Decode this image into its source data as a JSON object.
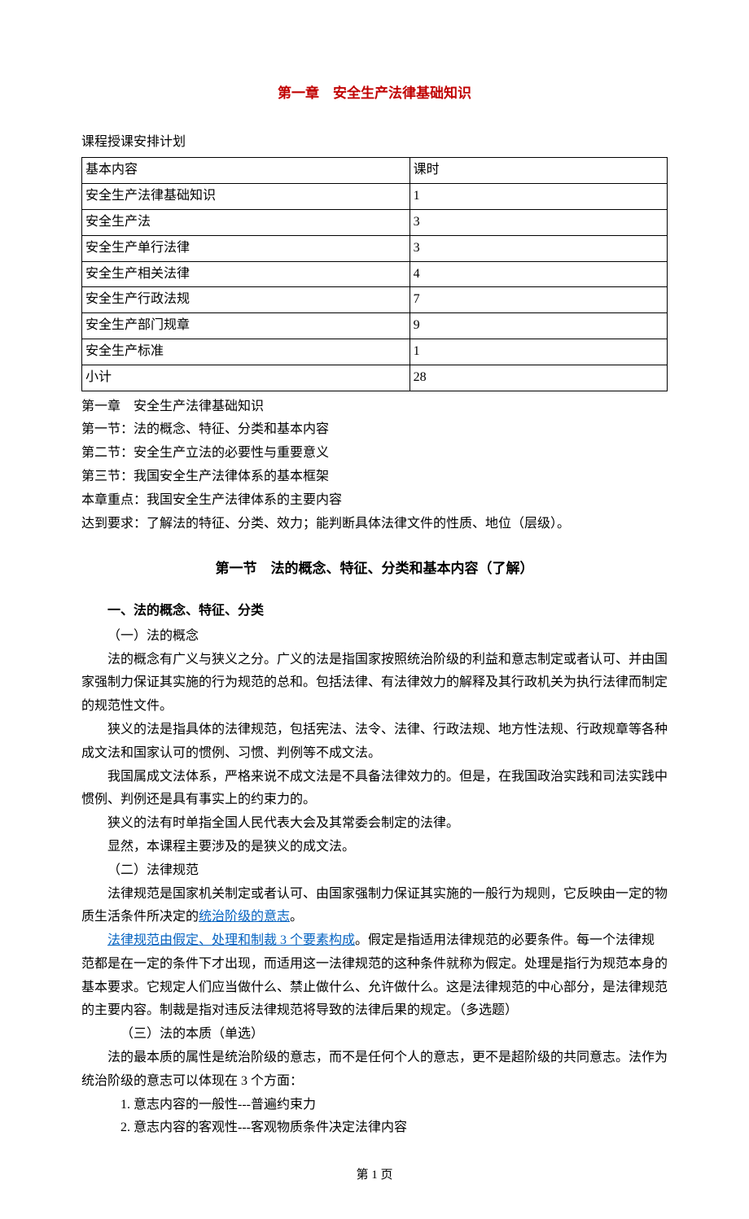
{
  "colors": {
    "accent_red": "#c00000",
    "link_blue": "#0563c1",
    "text": "#000000",
    "background": "#ffffff",
    "border": "#000000"
  },
  "typography": {
    "base_font_family": "SimSun, 宋体, serif",
    "base_font_size_pt": 12,
    "title_font_size_pt": 13,
    "line_height": 1.8
  },
  "chapter_title": "第一章　安全生产法律基础知识",
  "schedule_label": "课程授课安排计划",
  "table": {
    "type": "table",
    "columns": [
      "基本内容",
      "课时"
    ],
    "rows": [
      [
        "安全生产法律基础知识",
        "1"
      ],
      [
        "安全生产法",
        "3"
      ],
      [
        "安全生产单行法律",
        "3"
      ],
      [
        "安全生产相关法律",
        "4"
      ],
      [
        "安全生产行政法规",
        "7"
      ],
      [
        "安全生产部门规章",
        "9"
      ],
      [
        "安全生产标准",
        "1"
      ],
      [
        "小计",
        "28"
      ]
    ],
    "col_widths_pct": [
      56,
      44
    ],
    "border_color": "#000000"
  },
  "toc": {
    "line1": "第一章　安全生产法律基础知识",
    "line2": "第一节：法的概念、特征、分类和基本内容",
    "line3": "第二节：安全生产立法的必要性与重要意义",
    "line4": "第三节：我国安全生产法律体系的基本框架",
    "line5": "本章重点：我国安全生产法律体系的主要内容",
    "line6": "达到要求：了解法的特征、分类、效力；能判断具体法律文件的性质、地位（层级）。"
  },
  "section1_title": "第一节　法的概念、特征、分类和基本内容（了解）",
  "h1": "一、法的概念、特征、分类",
  "h1_1": "（一）法的概念",
  "p1_1": "法的概念有广义与狭义之分。广义的法是指国家按照统治阶级的利益和意志制定或者认可、并由国家强制力保证其实施的行为规范的总和。包括法律、有法律效力的解释及其行政机关为执行法律而制定的规范性文件。",
  "p1_2": "狭义的法是指具体的法律规范，包括宪法、法令、法律、行政法规、地方性法规、行政规章等各种成文法和国家认可的惯例、习惯、判例等不成文法。",
  "p1_3": "我国属成文法体系，严格来说不成文法是不具备法律效力的。但是，在我国政治实践和司法实践中惯例、判例还是具有事实上的约束力的。",
  "p1_4": "狭义的法有时单指全国人民代表大会及其常委会制定的法律。",
  "p1_5": "显然，本课程主要涉及的是狭义的成文法。",
  "h1_2": "（二）法律规范",
  "p2_1a": "法律规范是国家机关制定或者认可、由国家强制力保证其实施的一般行为规则，它反映由一定的物质生活条件所决定的",
  "p2_1b": "统治阶级的意志",
  "p2_1c": "。",
  "p2_2a": "法律规范由假定、处理和制裁 3 个要素构成",
  "p2_2b": "。假定是指适用法律规范的必要条件。每一个法律规范都是在一定的条件下才出现，而适用这一法律规范的这种条件就称为假定。处理是指行为规范本身的基本要求。它规定人们应当做什么、禁止做什么、允许做什么。这是法律规范的中心部分，是法律规范的主要内容。制裁是指对违反法律规范将导致的法律后果的规定。（多选题）",
  "h1_3": "（三）法的本质（单选）",
  "p3_1": "法的最本质的属性是统治阶级的意志，而不是任何个人的意志，更不是超阶级的共同意志。法作为统治阶级的意志可以体现在 3 个方面：",
  "p3_2": "1. 意志内容的一般性---普遍约束力",
  "p3_3": "2. 意志内容的客观性---客观物质条件决定法律内容",
  "footer": "第 1 页"
}
